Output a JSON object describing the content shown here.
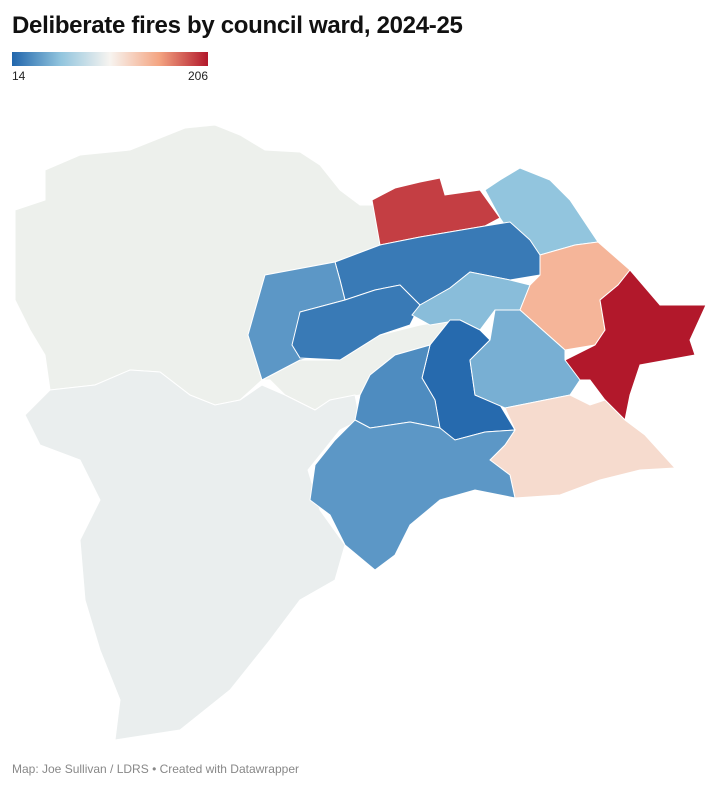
{
  "title": "Deliberate fires by council ward, 2024-25",
  "legend": {
    "min": 14,
    "max": 206,
    "colors": [
      "#2166ac",
      "#92c5de",
      "#f7f4f0",
      "#f4a582",
      "#b2182b"
    ]
  },
  "wards": [
    104,
    193,
    62,
    24,
    39,
    24,
    58,
    148,
    206,
    16,
    51,
    33,
    125,
    39
  ],
  "no_data_color": "#edf0ec",
  "source": "Map: Joe Sullivan / LDRS • Created with Datawrapper"
}
